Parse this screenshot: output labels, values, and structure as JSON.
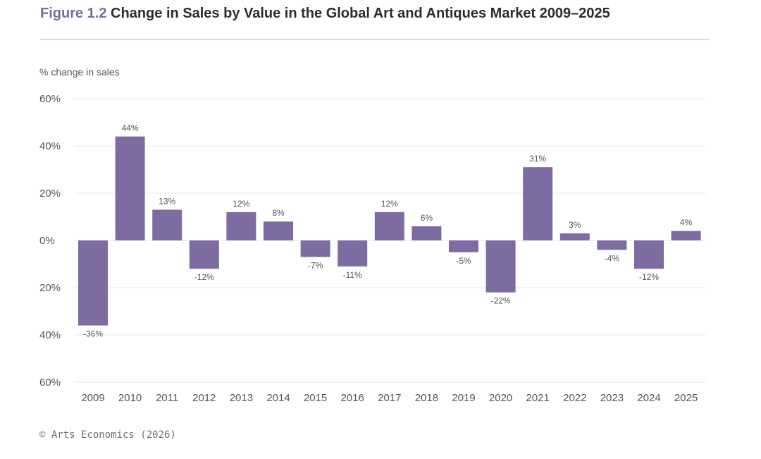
{
  "title": {
    "prefix": "Figure 1.2",
    "text": "Change in Sales by Value in the Global Art and Antiques Market 2009–2025"
  },
  "source": "© Arts Economics (2026)",
  "colors": {
    "bar": "#7e6ba1",
    "title_accent": "#7b6aa0",
    "gridline": "#e8e8ec"
  },
  "chart_data": {
    "type": "bar",
    "ylabel": "% change in sales",
    "xlabel": "",
    "ylim": [
      -60,
      60
    ],
    "grid": true,
    "yticks": [
      {
        "value": 60,
        "label": "60%"
      },
      {
        "value": 40,
        "label": "40%"
      },
      {
        "value": 20,
        "label": "20%"
      },
      {
        "value": 0,
        "label": "0%"
      },
      {
        "value": -20,
        "label": "20%"
      },
      {
        "value": -40,
        "label": "40%"
      },
      {
        "value": -60,
        "label": "60%"
      }
    ],
    "categories": [
      "2009",
      "2010",
      "2011",
      "2012",
      "2013",
      "2014",
      "2015",
      "2016",
      "2017",
      "2018",
      "2019",
      "2020",
      "2021",
      "2022",
      "2023",
      "2024",
      "2025"
    ],
    "values": [
      -36,
      44,
      13,
      -12,
      12,
      8,
      -7,
      -11,
      12,
      6,
      -5,
      -22,
      31,
      3,
      -4,
      -12,
      4
    ],
    "data_labels": [
      "-36%",
      "44%",
      "13%",
      "-12%",
      "12%",
      "8%",
      "-7%",
      "-11%",
      "12%",
      "6%",
      "-5%",
      "-22%",
      "31%",
      "3%",
      "-4%",
      "-12%",
      "4%"
    ]
  }
}
